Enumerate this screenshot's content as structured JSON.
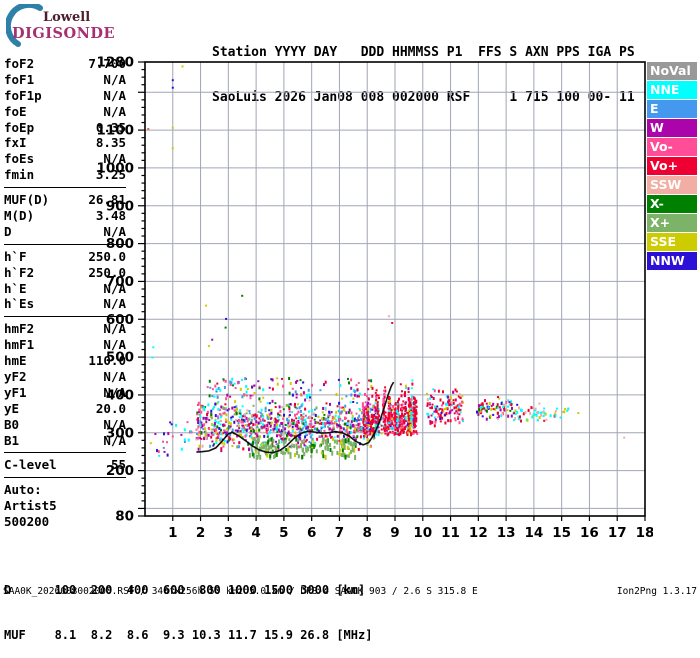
{
  "logo": {
    "line1": "Lowell",
    "line2": "DIGISONDE"
  },
  "header": {
    "line1": "Station YYYY DAY   DDD HHMMSS P1  FFS S AXN PPS IGA PS",
    "line2": "SaoLuis 2026 Jan08 008 002000 RSF     1 715 100 00- 11"
  },
  "params": {
    "groups": [
      {
        "rows": [
          [
            "foF2",
            "7.700"
          ],
          [
            "foF1",
            "N/A"
          ],
          [
            "foF1p",
            "N/A"
          ],
          [
            "foE",
            "N/A"
          ],
          [
            "foEp",
            "0.35"
          ],
          [
            "fxI",
            "8.35"
          ],
          [
            "foEs",
            "N/A"
          ],
          [
            "fmin",
            "3.25"
          ]
        ]
      },
      {
        "rows": [
          [
            "MUF(D)",
            "26.81"
          ],
          [
            "M(D)",
            "3.48"
          ],
          [
            "D",
            "N/A"
          ]
        ]
      },
      {
        "rows": [
          [
            "h`F",
            "250.0"
          ],
          [
            "h`F2",
            "250.0"
          ],
          [
            "h`E",
            "N/A"
          ],
          [
            "h`Es",
            "N/A"
          ]
        ]
      },
      {
        "rows": [
          [
            "hmF2",
            "N/A"
          ],
          [
            "hmF1",
            "N/A"
          ],
          [
            "hmE",
            "110.0"
          ],
          [
            "yF2",
            "N/A"
          ],
          [
            "yF1",
            "N/A"
          ],
          [
            "yE",
            "20.0"
          ],
          [
            "B0",
            "N/A"
          ],
          [
            "B1",
            "N/A"
          ]
        ]
      },
      {
        "rows": [
          [
            "C-level",
            "55"
          ]
        ]
      },
      {
        "lines": [
          "Auto:",
          "Artist5",
          "500200"
        ]
      }
    ]
  },
  "legend": {
    "items": [
      {
        "key": "NoVal",
        "label": "NoVal"
      },
      {
        "key": "NNE",
        "label": "NNE"
      },
      {
        "key": "E",
        "label": "E"
      },
      {
        "key": "W",
        "label": "W"
      },
      {
        "key": "Vo-",
        "label": "Vo-"
      },
      {
        "key": "Vo+",
        "label": "Vo+"
      },
      {
        "key": "SSW",
        "label": "SSW"
      },
      {
        "key": "X-",
        "label": "X-"
      },
      {
        "key": "X+",
        "label": "X+"
      },
      {
        "key": "SSE",
        "label": "SSE"
      },
      {
        "key": "NNW",
        "label": "NNW"
      }
    ]
  },
  "chart_data": {
    "type": "scatter",
    "x_unit": "MHz",
    "y_unit": "km",
    "xlim": [
      0,
      18
    ],
    "ylim": [
      80,
      1280
    ],
    "grid": true,
    "x_ticks": [
      1,
      2,
      3,
      4,
      5,
      6,
      7,
      8,
      9,
      10,
      11,
      12,
      13,
      14,
      15,
      16,
      17,
      18
    ],
    "y_ticks": [
      1280,
      1100,
      1000,
      900,
      800,
      700,
      600,
      500,
      400,
      300,
      200,
      80
    ],
    "grid_color": "#a0a6b6",
    "palette": {
      "NoVal": "#999999",
      "NNE": "#00ffff",
      "E": "#4499ee",
      "W": "#aa04aa",
      "Vo-": "#ff4d98",
      "Vo+": "#ee0033",
      "SSW": "#f2aea4",
      "X-": "#008000",
      "X+": "#7db269",
      "SSE": "#cccc00",
      "NNW": "#2b10d8"
    },
    "clusters": [
      {
        "name": "main-cloud",
        "x": [
          1.85,
          8.3
        ],
        "h": [
          248,
          392
        ],
        "n": 950,
        "size": [
          2,
          3
        ],
        "bias": "center",
        "colors": [
          "Vo-",
          "W",
          "NNE",
          "E",
          "SSE",
          "Vo+",
          "X-",
          "NNW",
          "SSW",
          "X+"
        ],
        "weights": [
          18,
          15,
          13,
          10,
          12,
          10,
          7,
          8,
          4,
          3
        ]
      },
      {
        "name": "cloud-top-sparse",
        "x": [
          2.1,
          8.2
        ],
        "h": [
          390,
          445
        ],
        "n": 115,
        "size": [
          2,
          3
        ],
        "colors": [
          "Vo-",
          "W",
          "NNE",
          "SSE",
          "E",
          "NNW",
          "Vo+",
          "X-"
        ],
        "weights": [
          16,
          14,
          14,
          14,
          12,
          10,
          12,
          8
        ]
      },
      {
        "name": "green-bottom-band",
        "x": [
          3.7,
          7.6
        ],
        "h": [
          238,
          285
        ],
        "n": 170,
        "size": [
          3,
          5
        ],
        "colors": [
          "X+",
          "X-",
          "SSE"
        ],
        "weights": [
          70,
          18,
          12
        ]
      },
      {
        "name": "left-low-freq-specks",
        "x": [
          0.15,
          1.85
        ],
        "h": [
          235,
          330
        ],
        "n": 26,
        "size": [
          2,
          3
        ],
        "colors": [
          "NNW",
          "NNE",
          "W",
          "SSE",
          "Vo-",
          "E"
        ],
        "weights": [
          25,
          20,
          15,
          15,
          15,
          10
        ]
      },
      {
        "name": "red-base-band",
        "x": [
          7.9,
          9.7
        ],
        "h": [
          295,
          345
        ],
        "n": 160,
        "size": [
          2,
          3
        ],
        "colors": [
          "Vo+",
          "Vo-",
          "W",
          "NNE",
          "SSE"
        ],
        "weights": [
          58,
          14,
          10,
          9,
          9
        ]
      },
      {
        "name": "red-spike-zone",
        "type": "streaks",
        "x": [
          7.85,
          9.78
        ],
        "h_base": [
          292,
          336
        ],
        "h_top": [
          352,
          508
        ],
        "n_streaks": 58,
        "dots_per": [
          4,
          15
        ],
        "size": [
          2,
          3
        ],
        "colors": [
          "Vo+",
          "Vo-",
          "W",
          "NNE",
          "SSE",
          "NNW"
        ],
        "weights": [
          58,
          12,
          10,
          9,
          7,
          4
        ]
      },
      {
        "name": "cluster-10-11",
        "x": [
          10.15,
          11.45
        ],
        "h": [
          315,
          425
        ],
        "n": 120,
        "size": [
          2,
          3
        ],
        "bias": "center",
        "colors": [
          "Vo+",
          "Vo-",
          "NNE",
          "SSE",
          "W",
          "NNW",
          "SSW"
        ],
        "weights": [
          38,
          14,
          16,
          10,
          10,
          6,
          6
        ]
      },
      {
        "name": "cluster-12-13",
        "x": [
          11.95,
          13.25
        ],
        "h": [
          332,
          398
        ],
        "n": 85,
        "size": [
          2,
          3
        ],
        "bias": "center",
        "colors": [
          "W",
          "Vo+",
          "NNE",
          "SSE",
          "X-",
          "NNW",
          "Vo-",
          "SSW"
        ],
        "weights": [
          22,
          20,
          18,
          12,
          8,
          8,
          6,
          6
        ]
      },
      {
        "name": "cyan-band-13-14",
        "x": [
          13.25,
          14.55
        ],
        "h": [
          330,
          368
        ],
        "n": 48,
        "size": [
          2,
          3
        ],
        "colors": [
          "NNE",
          "SSW",
          "SSE",
          "Vo+"
        ],
        "weights": [
          62,
          14,
          12,
          12
        ]
      },
      {
        "name": "trail-14-15",
        "x": [
          14.55,
          15.35
        ],
        "h": [
          340,
          368
        ],
        "n": 12,
        "size": [
          2,
          3
        ],
        "colors": [
          "NNE",
          "SSE",
          "Vo+",
          "SSW"
        ],
        "weights": [
          40,
          25,
          20,
          15
        ]
      }
    ],
    "isolated_dots": [
      [
        1.35,
        1268,
        "SSE"
      ],
      [
        1.0,
        1232,
        "NNW"
      ],
      [
        1.0,
        1212,
        "NNW"
      ],
      [
        0.12,
        1103,
        "#e06a3c"
      ],
      [
        1.0,
        1106,
        "SSE"
      ],
      [
        1.0,
        1052,
        "SSE"
      ],
      [
        2.2,
        636,
        "SSE"
      ],
      [
        3.5,
        662,
        "X-"
      ],
      [
        2.92,
        601,
        "NNW"
      ],
      [
        2.9,
        578,
        "X-"
      ],
      [
        2.42,
        546,
        "W"
      ],
      [
        2.3,
        529,
        "SSE"
      ],
      [
        0.3,
        526,
        "NNE"
      ],
      [
        0.27,
        499,
        "NNE"
      ],
      [
        5.62,
        418,
        "NNW"
      ],
      [
        8.78,
        608,
        "SSW"
      ],
      [
        8.9,
        590,
        "Vo+"
      ],
      [
        13.4,
        374,
        "NNW"
      ],
      [
        14.2,
        377,
        "SSW"
      ],
      [
        15.2,
        358,
        "NNE"
      ],
      [
        15.6,
        352,
        "SSE"
      ],
      [
        17.25,
        287,
        "SSW"
      ]
    ],
    "trace": {
      "color": "#000000",
      "points": [
        [
          1.85,
          249
        ],
        [
          2.05,
          250
        ],
        [
          2.3,
          252
        ],
        [
          2.55,
          260
        ],
        [
          2.8,
          280
        ],
        [
          3.0,
          297
        ],
        [
          3.15,
          301
        ],
        [
          3.35,
          293
        ],
        [
          3.6,
          280
        ],
        [
          3.85,
          266
        ],
        [
          4.1,
          255
        ],
        [
          4.35,
          249
        ],
        [
          4.6,
          247
        ],
        [
          4.85,
          253
        ],
        [
          5.1,
          266
        ],
        [
          5.35,
          284
        ],
        [
          5.6,
          298
        ],
        [
          5.85,
          304
        ],
        [
          6.1,
          302
        ],
        [
          6.35,
          299
        ],
        [
          6.6,
          300
        ],
        [
          6.85,
          303
        ],
        [
          7.1,
          300
        ],
        [
          7.35,
          291
        ],
        [
          7.6,
          277
        ],
        [
          7.85,
          268
        ],
        [
          8.05,
          274
        ],
        [
          8.25,
          296
        ],
        [
          8.45,
          330
        ],
        [
          8.6,
          364
        ],
        [
          8.75,
          400
        ],
        [
          8.87,
          424
        ],
        [
          8.95,
          434
        ]
      ]
    }
  },
  "footer": {
    "d_row": "D      100  200  400  600  800 1000 1500 3000 [km]",
    "muf_row": "MUF    8.1  8.2  8.6  9.3 10.3 11.7 15.9 26.8 [MHz]",
    "status_left": "SAA0K_2026008002000.RSF / 340fx256h 50 kHz 5.0 km / DPS-4 SAA0K 903 / 2.6 S 315.8 E",
    "status_right": "Ion2Png 1.3.17"
  }
}
